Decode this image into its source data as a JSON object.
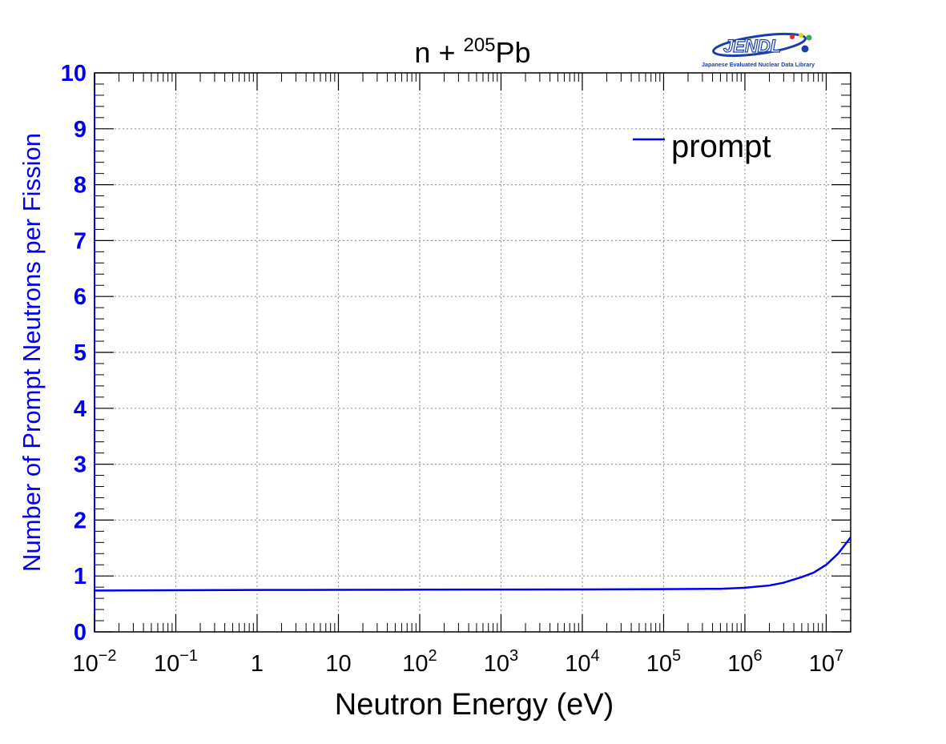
{
  "chart_data": {
    "type": "line",
    "title": {
      "base": "n + ",
      "superscript": "205",
      "element": "Pb"
    },
    "xlabel": "Neutron Energy (eV)",
    "ylabel": "Number of Prompt Neutrons per Fission",
    "x_scale": "log",
    "xlim": [
      0.01,
      20000000
    ],
    "ylim": [
      0,
      10
    ],
    "grid": true,
    "legend_position": "top-right",
    "x_tick_labels": [
      {
        "value": 0.01,
        "base": "10",
        "exp": "−2"
      },
      {
        "value": 0.1,
        "base": "10",
        "exp": "−1"
      },
      {
        "value": 1,
        "base": "1",
        "exp": ""
      },
      {
        "value": 10,
        "base": "10",
        "exp": ""
      },
      {
        "value": 100,
        "base": "10",
        "exp": "2"
      },
      {
        "value": 1000,
        "base": "10",
        "exp": "3"
      },
      {
        "value": 10000,
        "base": "10",
        "exp": "4"
      },
      {
        "value": 100000,
        "base": "10",
        "exp": "5"
      },
      {
        "value": 1000000,
        "base": "10",
        "exp": "6"
      },
      {
        "value": 10000000,
        "base": "10",
        "exp": "7"
      }
    ],
    "y_tick_labels": [
      "0",
      "1",
      "2",
      "3",
      "4",
      "5",
      "6",
      "7",
      "8",
      "9",
      "10"
    ],
    "series": [
      {
        "name": "prompt",
        "color": "#0000ee",
        "x": [
          0.01,
          0.1,
          1,
          10,
          100,
          1000,
          10000,
          100000,
          500000,
          1000000,
          2000000,
          3000000,
          5000000,
          7000000,
          10000000,
          14000000,
          20000000
        ],
        "y": [
          0.74,
          0.745,
          0.75,
          0.752,
          0.755,
          0.758,
          0.76,
          0.765,
          0.77,
          0.79,
          0.83,
          0.88,
          0.98,
          1.06,
          1.2,
          1.4,
          1.69
        ]
      }
    ]
  },
  "logo": {
    "word": "JENDL",
    "subtitle": "Japanese Evaluated Nuclear Data Library",
    "dot_colors": [
      "#e8262a",
      "#f5c518",
      "#2fb34a",
      "#1b3fa8"
    ]
  }
}
